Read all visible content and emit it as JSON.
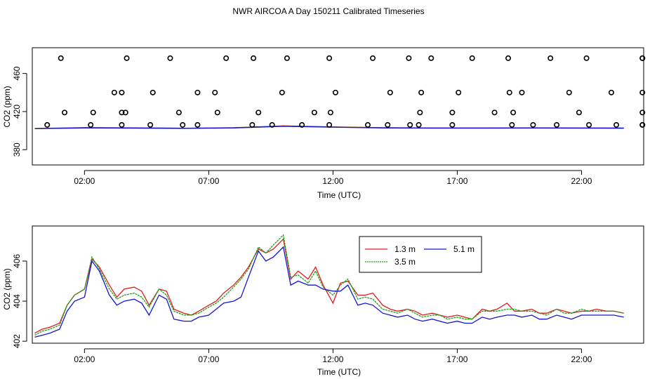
{
  "figure_title": "NWR AIRCOA A  Day 150211  Calibrated Timeseries",
  "colors": {
    "h13": "#e31a1c",
    "h35": "#1aa31a",
    "h51": "#1414d2",
    "axis": "#000000"
  },
  "chart_data": [
    {
      "id": "top",
      "type": "line",
      "title": "",
      "xlabel": "Time (UTC)",
      "ylabel": "CO2 (ppm)",
      "xlim": [
        -0.1,
        24.5
      ],
      "ylim": [
        364,
        487
      ],
      "xticks": [
        2,
        7,
        12,
        17,
        22
      ],
      "xtick_labels": [
        "02:00",
        "07:00",
        "12:00",
        "17:00",
        "22:00"
      ],
      "yticks": [
        380,
        420,
        460
      ],
      "ytick_labels": [
        "380",
        "420",
        "460"
      ],
      "points": [
        [
          1.05,
          476
        ],
        [
          3.7,
          476
        ],
        [
          5.45,
          476
        ],
        [
          7.7,
          476
        ],
        [
          8.8,
          476
        ],
        [
          10.15,
          476
        ],
        [
          11.85,
          476
        ],
        [
          13.6,
          476
        ],
        [
          15.05,
          476
        ],
        [
          15.95,
          476
        ],
        [
          17.6,
          476
        ],
        [
          19.05,
          476
        ],
        [
          20.75,
          476
        ],
        [
          22.2,
          476
        ],
        [
          24.45,
          476
        ],
        [
          24.45,
          476
        ],
        [
          3.2,
          440
        ],
        [
          3.5,
          440
        ],
        [
          4.75,
          440
        ],
        [
          6.55,
          440
        ],
        [
          7.25,
          440
        ],
        [
          9.95,
          440
        ],
        [
          12.1,
          440
        ],
        [
          14.3,
          440
        ],
        [
          15.55,
          440
        ],
        [
          17.05,
          440
        ],
        [
          19.1,
          440
        ],
        [
          19.6,
          440
        ],
        [
          21.5,
          440
        ],
        [
          23.2,
          440
        ],
        [
          24.45,
          440
        ],
        [
          1.2,
          419
        ],
        [
          2.35,
          419
        ],
        [
          3.65,
          419
        ],
        [
          5.8,
          419
        ],
        [
          7.35,
          419
        ],
        [
          9.0,
          419
        ],
        [
          11.25,
          419
        ],
        [
          11.9,
          419
        ],
        [
          15.5,
          419
        ],
        [
          16.8,
          419
        ],
        [
          18.5,
          419
        ],
        [
          19.25,
          419
        ],
        [
          21.9,
          419
        ],
        [
          24.45,
          419
        ],
        [
          3.5,
          419
        ],
        [
          0.5,
          406
        ],
        [
          2.25,
          406
        ],
        [
          3.5,
          406
        ],
        [
          4.65,
          406
        ],
        [
          5.95,
          406
        ],
        [
          6.55,
          406
        ],
        [
          8.75,
          406
        ],
        [
          9.55,
          406
        ],
        [
          10.75,
          406
        ],
        [
          11.85,
          406
        ],
        [
          13.4,
          406
        ],
        [
          14.2,
          406
        ],
        [
          15.1,
          406
        ],
        [
          15.45,
          406
        ],
        [
          16.8,
          406
        ],
        [
          19.2,
          406
        ],
        [
          20.05,
          406
        ],
        [
          21.0,
          406
        ],
        [
          22.3,
          406
        ],
        [
          23.4,
          406
        ],
        [
          24.45,
          406
        ],
        [
          24.45,
          406
        ]
      ],
      "series": [
        {
          "name": "1.3 m",
          "color": "#e31a1c",
          "x": [
            0,
            2,
            4,
            6,
            8,
            10,
            12,
            14,
            16,
            18,
            20,
            22,
            23.7
          ],
          "values": [
            402.3,
            403.2,
            403.0,
            402.6,
            403.1,
            405.0,
            403.9,
            403.1,
            402.9,
            402.9,
            403.0,
            402.9,
            402.8
          ]
        },
        {
          "name": "3.5 m",
          "color": "#1aa31a",
          "x": [
            0,
            2,
            4,
            6,
            8,
            10,
            12,
            14,
            16,
            18,
            20,
            22,
            23.7
          ],
          "values": [
            402.2,
            403.0,
            402.9,
            402.5,
            403.0,
            404.8,
            403.8,
            403.0,
            402.8,
            402.8,
            402.9,
            402.8,
            402.7
          ]
        },
        {
          "name": "5.1 m",
          "color": "#1414d2",
          "x": [
            0,
            2,
            4,
            6,
            8,
            10,
            12,
            14,
            16,
            18,
            20,
            22,
            23.7
          ],
          "values": [
            402.0,
            402.8,
            402.6,
            402.3,
            402.8,
            404.5,
            403.6,
            402.8,
            402.6,
            402.6,
            402.7,
            402.6,
            402.5
          ]
        }
      ]
    },
    {
      "id": "bottom",
      "type": "line",
      "title": "",
      "xlabel": "Time (UTC)",
      "ylabel": "CO2 (ppm)",
      "xlim": [
        -0.1,
        24.5
      ],
      "ylim": [
        401.9,
        407.75
      ],
      "xticks": [
        2,
        7,
        12,
        17,
        22
      ],
      "xtick_labels": [
        "02:00",
        "07:00",
        "12:00",
        "17:00",
        "22:00"
      ],
      "yticks": [
        402,
        404,
        406
      ],
      "ytick_labels": [
        "402",
        "404",
        "406"
      ],
      "legend": {
        "position": "top-center",
        "entries": [
          "1.3 m",
          "3.5 m",
          "5.1 m"
        ]
      },
      "series": [
        {
          "name": "1.3 m",
          "color": "#e31a1c",
          "x": [
            0,
            0.3,
            0.6,
            1.0,
            1.3,
            1.6,
            2.0,
            2.3,
            2.6,
            3.0,
            3.3,
            3.6,
            4.0,
            4.3,
            4.6,
            5.0,
            5.3,
            5.6,
            6.0,
            6.3,
            6.6,
            7.0,
            7.3,
            7.6,
            8.0,
            8.3,
            8.6,
            9.0,
            9.3,
            9.6,
            10.0,
            10.3,
            10.6,
            11.0,
            11.3,
            11.6,
            12.0,
            12.3,
            12.6,
            13.0,
            13.3,
            13.6,
            14.0,
            14.3,
            14.6,
            15.0,
            15.3,
            15.6,
            16.0,
            16.3,
            16.6,
            17.0,
            17.3,
            17.6,
            18.0,
            18.3,
            18.6,
            19.0,
            19.3,
            19.6,
            20.0,
            20.3,
            20.6,
            21.0,
            21.3,
            21.6,
            22.0,
            22.3,
            22.6,
            23.0,
            23.3,
            23.7
          ],
          "values": [
            402.4,
            402.6,
            402.7,
            402.9,
            403.8,
            404.3,
            404.6,
            406.1,
            405.7,
            404.8,
            404.2,
            404.6,
            404.7,
            404.5,
            403.8,
            404.6,
            404.5,
            403.6,
            403.4,
            403.3,
            403.5,
            403.8,
            404.0,
            404.4,
            404.8,
            405.2,
            405.7,
            406.6,
            406.4,
            406.6,
            407.1,
            405.1,
            405.5,
            405.1,
            405.7,
            404.8,
            403.9,
            404.9,
            405.0,
            404.3,
            404.3,
            404.4,
            403.8,
            403.6,
            403.5,
            403.6,
            403.5,
            403.3,
            403.4,
            403.3,
            403.2,
            403.3,
            403.2,
            403.1,
            403.6,
            403.5,
            403.6,
            403.9,
            403.5,
            403.5,
            403.6,
            403.4,
            403.4,
            403.6,
            403.5,
            403.4,
            403.5,
            403.5,
            403.6,
            403.5,
            403.5,
            403.4
          ]
        },
        {
          "name": "3.5 m",
          "color": "#1aa31a",
          "x": [
            0,
            0.3,
            0.6,
            1.0,
            1.3,
            1.6,
            2.0,
            2.3,
            2.6,
            3.0,
            3.3,
            3.6,
            4.0,
            4.3,
            4.6,
            5.0,
            5.3,
            5.6,
            6.0,
            6.3,
            6.6,
            7.0,
            7.3,
            7.6,
            8.0,
            8.3,
            8.6,
            9.0,
            9.3,
            9.6,
            10.0,
            10.3,
            10.6,
            11.0,
            11.3,
            11.6,
            12.0,
            12.3,
            12.6,
            13.0,
            13.3,
            13.6,
            14.0,
            14.3,
            14.6,
            15.0,
            15.3,
            15.6,
            16.0,
            16.3,
            16.6,
            17.0,
            17.3,
            17.6,
            18.0,
            18.3,
            18.6,
            19.0,
            19.3,
            19.6,
            20.0,
            20.3,
            20.6,
            21.0,
            21.3,
            21.6,
            22.0,
            22.3,
            22.6,
            23.0,
            23.3,
            23.7
          ],
          "values": [
            402.3,
            402.5,
            402.6,
            402.8,
            403.8,
            404.3,
            404.6,
            406.2,
            405.6,
            404.6,
            404.1,
            404.3,
            404.4,
            404.2,
            403.7,
            404.6,
            404.3,
            403.5,
            403.3,
            403.3,
            403.4,
            403.7,
            403.9,
            404.2,
            404.7,
            405.1,
            405.6,
            406.7,
            406.4,
            406.8,
            407.3,
            405.2,
            405.3,
            404.9,
            405.5,
            404.7,
            404.3,
            404.8,
            405.1,
            404.1,
            404.2,
            404.1,
            403.6,
            403.5,
            403.4,
            403.6,
            403.4,
            403.2,
            403.3,
            403.3,
            403.1,
            403.2,
            403.1,
            403.1,
            403.5,
            403.5,
            403.5,
            403.6,
            403.6,
            403.5,
            403.5,
            403.4,
            403.3,
            403.6,
            403.4,
            403.4,
            403.6,
            403.5,
            403.5,
            403.5,
            403.5,
            403.4
          ]
        },
        {
          "name": "5.1 m",
          "color": "#1414d2",
          "x": [
            0,
            0.3,
            0.6,
            1.0,
            1.3,
            1.6,
            2.0,
            2.3,
            2.6,
            3.0,
            3.3,
            3.6,
            4.0,
            4.3,
            4.6,
            5.0,
            5.3,
            5.6,
            6.0,
            6.3,
            6.6,
            7.0,
            7.3,
            7.6,
            8.0,
            8.3,
            8.6,
            9.0,
            9.3,
            9.6,
            10.0,
            10.3,
            10.6,
            11.0,
            11.3,
            11.6,
            12.0,
            12.3,
            12.6,
            13.0,
            13.3,
            13.6,
            14.0,
            14.3,
            14.6,
            15.0,
            15.3,
            15.6,
            16.0,
            16.3,
            16.6,
            17.0,
            17.3,
            17.6,
            18.0,
            18.3,
            18.6,
            19.0,
            19.3,
            19.6,
            20.0,
            20.3,
            20.6,
            21.0,
            21.3,
            21.6,
            22.0,
            22.3,
            22.6,
            23.0,
            23.3,
            23.7
          ],
          "values": [
            402.2,
            402.3,
            402.4,
            402.6,
            403.5,
            404.0,
            404.2,
            406.0,
            405.5,
            404.3,
            403.8,
            404.0,
            404.1,
            403.9,
            403.3,
            404.3,
            404.1,
            403.1,
            403.0,
            403.0,
            403.2,
            403.3,
            403.6,
            403.9,
            404.0,
            404.2,
            405.2,
            406.5,
            406.0,
            406.2,
            406.7,
            404.8,
            405.0,
            404.8,
            404.8,
            404.6,
            404.5,
            404.5,
            404.8,
            403.8,
            403.9,
            403.8,
            403.4,
            403.3,
            403.2,
            403.3,
            403.1,
            403.0,
            403.1,
            403.0,
            402.9,
            403.0,
            402.9,
            402.9,
            403.2,
            403.1,
            403.2,
            403.3,
            403.3,
            403.2,
            403.3,
            403.1,
            403.1,
            403.3,
            403.2,
            403.1,
            403.3,
            403.3,
            403.3,
            403.3,
            403.3,
            403.2
          ]
        }
      ]
    }
  ]
}
